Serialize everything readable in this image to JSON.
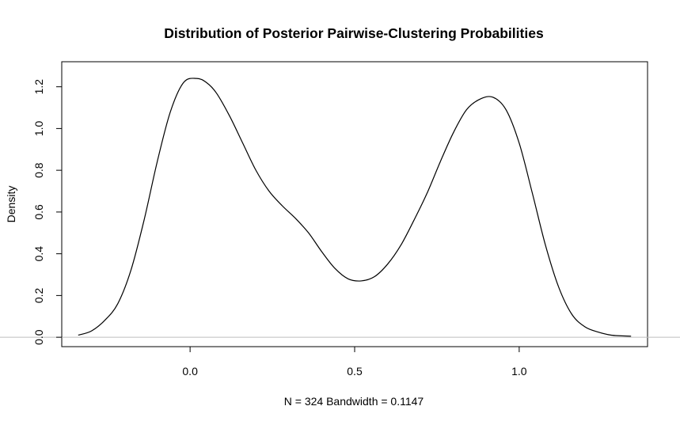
{
  "chart_data": {
    "type": "line",
    "title": "Distribution of Posterior Pairwise-Clustering Probabilities",
    "xlabel": "N = 324   Bandwidth = 0.1147",
    "ylabel": "Density",
    "xlim": [
      -0.39,
      1.39
    ],
    "ylim": [
      -0.045,
      1.32
    ],
    "x_ticks": [
      0.0,
      0.5,
      1.0
    ],
    "x_tick_labels": [
      "0.0",
      "0.5",
      "1.0"
    ],
    "y_ticks": [
      0.0,
      0.2,
      0.4,
      0.6,
      0.8,
      1.0,
      1.2
    ],
    "y_tick_labels": [
      "0.0",
      "0.2",
      "0.4",
      "0.6",
      "0.8",
      "1.0",
      "1.2"
    ],
    "grid": false,
    "baseline_y": 0.0,
    "series": [
      {
        "line_color": "#000000",
        "x": [
          -0.34,
          -0.3,
          -0.26,
          -0.22,
          -0.18,
          -0.14,
          -0.1,
          -0.06,
          -0.02,
          0.02,
          0.05,
          0.08,
          0.12,
          0.16,
          0.2,
          0.24,
          0.28,
          0.32,
          0.36,
          0.4,
          0.44,
          0.48,
          0.52,
          0.56,
          0.6,
          0.64,
          0.68,
          0.72,
          0.76,
          0.8,
          0.84,
          0.88,
          0.92,
          0.96,
          1.0,
          1.04,
          1.08,
          1.12,
          1.16,
          1.2,
          1.24,
          1.28,
          1.34
        ],
        "y": [
          0.01,
          0.03,
          0.08,
          0.16,
          0.32,
          0.56,
          0.84,
          1.08,
          1.22,
          1.24,
          1.22,
          1.17,
          1.06,
          0.93,
          0.8,
          0.7,
          0.63,
          0.57,
          0.5,
          0.41,
          0.33,
          0.28,
          0.27,
          0.29,
          0.35,
          0.44,
          0.56,
          0.69,
          0.84,
          0.98,
          1.09,
          1.14,
          1.15,
          1.09,
          0.93,
          0.69,
          0.44,
          0.24,
          0.11,
          0.05,
          0.025,
          0.01,
          0.005
        ]
      }
    ]
  }
}
